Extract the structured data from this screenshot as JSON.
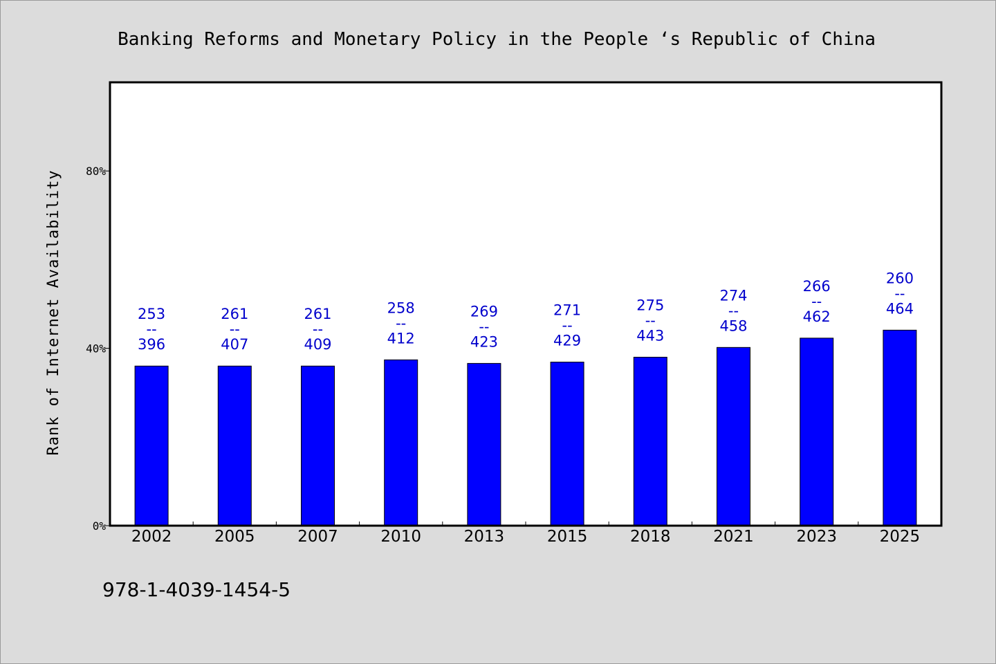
{
  "chart_data": {
    "type": "bar",
    "title": "Banking Reforms and Monetary Policy in the People ‘s Republic of China",
    "xlabel": "",
    "ylabel": "Rank of Internet Availability",
    "ylim": [
      0,
      100
    ],
    "yticks": [
      0,
      40,
      80
    ],
    "ytick_labels": [
      "0%",
      "40%",
      "80%"
    ],
    "grid": false,
    "categories": [
      "2002",
      "2005",
      "2007",
      "2010",
      "2013",
      "2015",
      "2018",
      "2021",
      "2023",
      "2025"
    ],
    "values": [
      36.0,
      36.0,
      36.0,
      37.4,
      36.6,
      36.9,
      38.0,
      40.2,
      42.3,
      44.1
    ],
    "bar_labels": [
      [
        "253",
        "--",
        "396"
      ],
      [
        "261",
        "--",
        "407"
      ],
      [
        "261",
        "--",
        "409"
      ],
      [
        "258",
        "--",
        "412"
      ],
      [
        "269",
        "--",
        "423"
      ],
      [
        "271",
        "--",
        "429"
      ],
      [
        "275",
        "--",
        "443"
      ],
      [
        "274",
        "--",
        "458"
      ],
      [
        "266",
        "--",
        "462"
      ],
      [
        "260",
        "--",
        "464"
      ]
    ],
    "bar_color": "#0000ff",
    "label_color": "#0000cc"
  },
  "footer": {
    "isbn": "978-1-4039-1454-5"
  }
}
